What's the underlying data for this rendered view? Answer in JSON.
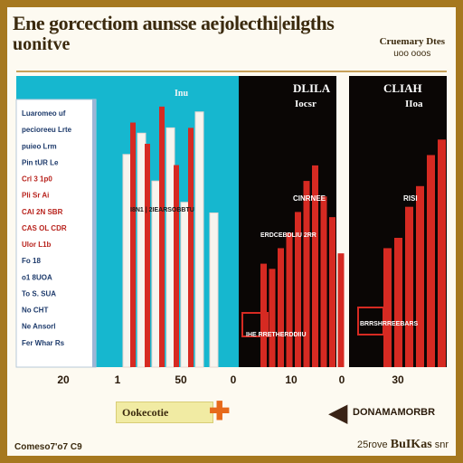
{
  "title": "Ene gorcectiom aunsse aejolecthi|eilgths",
  "subtitle": "uonitve",
  "corner": {
    "line1": "Cruemary Dtes",
    "line2": "uoo ooos"
  },
  "footer": {
    "left": "Comeso7'o7 C9",
    "right_prefix": "25rove",
    "right_bold": "BuIKas",
    "right_suffix": "snr"
  },
  "buttons": {
    "left": "Ookecotie",
    "right": "DONAMAMORBR"
  },
  "colors": {
    "teal": "#16b7cf",
    "red": "#d62a22",
    "black": "#0a0605",
    "gold": "#a6781f"
  },
  "chart_data": [
    {
      "type": "bar",
      "panel": "left",
      "background": "teal",
      "header": "Inu",
      "center_label": "I8N1 | 2IEARSOBBTU",
      "legend_entries": [
        "Luaromeo uf",
        "pecioreeu Lrte",
        "puieo Lrm",
        "Pin tUR Le",
        "Crl 3 1p0",
        "Pli Sr Ai",
        "CAI 2N SBR",
        "CAS OL CDR",
        "Ulor L1b",
        "Fo 18",
        "o1 8UOA",
        "To S. SUA",
        "No CHT",
        "Ne Ansorl",
        "Fer Whar Rs"
      ],
      "x_ticks": [
        "20",
        "1",
        "50",
        "0"
      ],
      "series": [
        {
          "color": "white",
          "values": [
            80,
            88,
            70,
            90,
            62,
            96,
            58
          ]
        },
        {
          "color": "red",
          "values": [
            92,
            84,
            98,
            76,
            90
          ]
        }
      ]
    },
    {
      "type": "bar",
      "panel": "middle",
      "background": "black",
      "header": "DLILA",
      "subheader": "Iocsr",
      "center_label": "CINRNEE",
      "lower_label": "ERDCEBDLIU 2RR",
      "bottom_label": "IHE RRETHERDDIIU",
      "x_ticks": [
        "10",
        "0"
      ],
      "values": [
        40,
        38,
        46,
        52,
        60,
        72,
        78,
        66,
        58,
        44
      ]
    },
    {
      "type": "bar",
      "panel": "right",
      "background": "black",
      "header": "CLIAH",
      "subheader": "IIoa",
      "center_label": "RISI",
      "bottom_label": "BRRSHRREEBARS",
      "x_ticks": [
        "30"
      ],
      "values": [
        46,
        50,
        62,
        70,
        82,
        88
      ]
    }
  ]
}
